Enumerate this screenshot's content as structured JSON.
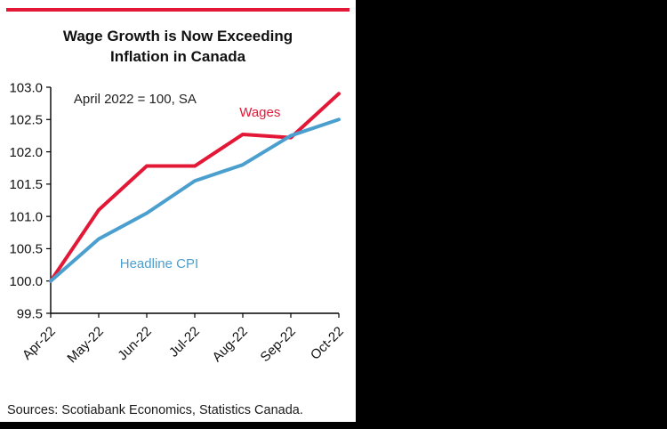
{
  "panel": {
    "source": "Sources: Scotiabank Economics, Statistics Canada."
  },
  "colors": {
    "accent_red": "#e31837",
    "cpi_blue": "#4a9fce",
    "panel_bg": "#ffffff",
    "page_bg": "#000000"
  },
  "chart_data": {
    "type": "line",
    "title": "Wage Growth is Now Exceeding Inflation in Canada",
    "title_lines": [
      "Wage Growth is Now Exceeding",
      "Inflation in Canada"
    ],
    "subtitle": "April 2022 = 100, SA",
    "categories": [
      "Apr-22",
      "May-22",
      "Jun-22",
      "Jul-22",
      "Aug-22",
      "Sep-22",
      "Oct-22"
    ],
    "series": [
      {
        "name": "Wages",
        "color": "#e31837",
        "values": [
          100.0,
          101.1,
          101.78,
          101.78,
          102.27,
          102.22,
          102.9
        ]
      },
      {
        "name": "Headline CPI",
        "color": "#4a9fce",
        "values": [
          100.0,
          100.65,
          101.05,
          101.55,
          101.8,
          102.25,
          102.5
        ]
      }
    ],
    "ylim": [
      99.5,
      103.0
    ],
    "ytick_step": 0.5,
    "xlabel": "",
    "ylabel": "",
    "grid": false,
    "legend": "inline-labels",
    "annotations": [
      {
        "text": "April 2022 = 100, SA",
        "fx": 0.08,
        "fy": 0.07,
        "color": "#222222",
        "size": 15,
        "anchor": "start"
      },
      {
        "text": "Wages",
        "fx": 0.655,
        "fy": 0.13,
        "color": "#e31837",
        "size": 15,
        "anchor": "start"
      },
      {
        "text": "Headline CPI",
        "fx": 0.24,
        "fy": 0.8,
        "color": "#4a9fce",
        "size": 15,
        "anchor": "start"
      }
    ]
  }
}
